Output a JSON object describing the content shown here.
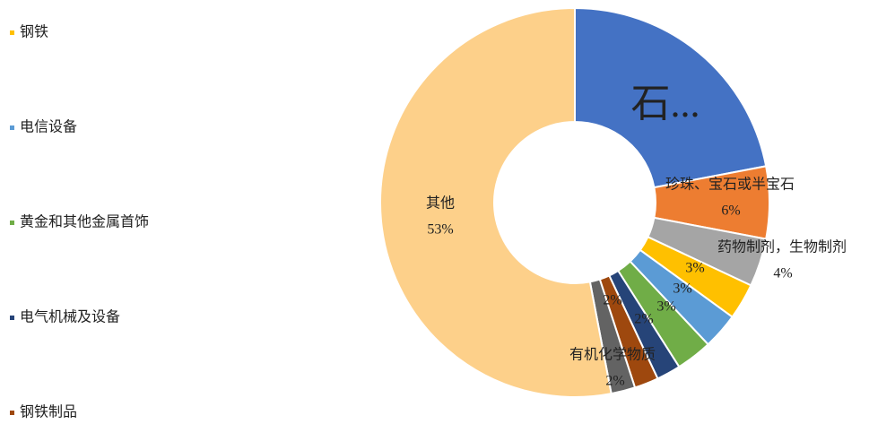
{
  "chart_data": {
    "type": "donut",
    "categories": [
      "石...",
      "珍珠、宝石或半宝石",
      "药物制剂，生物制剂",
      "钢铁",
      "电信设备",
      "黄金和其他金属首饰",
      "电气机械及设备",
      "钢铁制品",
      "有机化学物质",
      "其他"
    ],
    "values": [
      22,
      6,
      4,
      3,
      3,
      3,
      2,
      2,
      2,
      53
    ],
    "value_labels": [
      null,
      "6%",
      "4%",
      "3%",
      "3%",
      "3%",
      "2%",
      "2%",
      "2%",
      "53%"
    ],
    "name_labels": [
      true,
      true,
      true,
      false,
      false,
      false,
      false,
      false,
      true,
      true
    ],
    "colors": [
      "#4472c4",
      "#ed7d31",
      "#a5a5a5",
      "#ffc000",
      "#5b9bd5",
      "#70ad47",
      "#264478",
      "#9e480e",
      "#636363",
      "#fdd08a"
    ],
    "legend": [
      {
        "name": "钢铁",
        "color": "#ffc000"
      },
      {
        "name": "电信设备",
        "color": "#5b9bd5"
      },
      {
        "name": "黄金和其他金属首饰",
        "color": "#70ad47"
      },
      {
        "name": "电气机械及设备",
        "color": "#264478"
      },
      {
        "name": "钢铁制品",
        "color": "#9e480e"
      }
    ]
  }
}
